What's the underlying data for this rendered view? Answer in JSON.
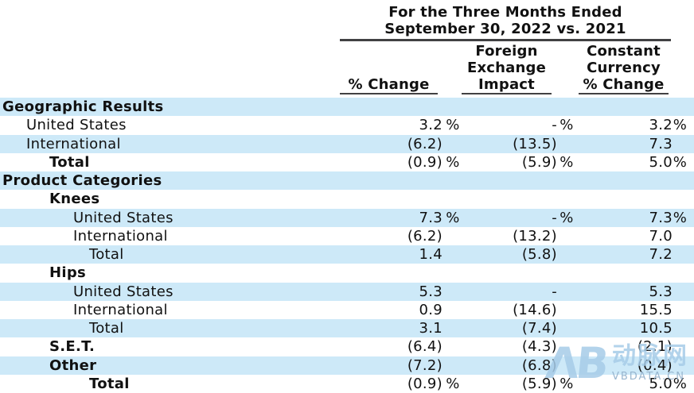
{
  "table_header": {
    "period_line1": "For the Three Months Ended",
    "period_line2": "September 30, 2022 vs. 2021",
    "col1_lines": [
      "% Change"
    ],
    "col2_lines": [
      "Foreign",
      "Exchange",
      "Impact"
    ],
    "col3_lines": [
      "Constant",
      "Currency",
      "% Change"
    ]
  },
  "rows": [
    {
      "label": "Geographic Results",
      "indent": 0,
      "bold": true,
      "shaded": true,
      "c1v": "",
      "c1s": "",
      "c2v": "",
      "c2s": "",
      "c3v": "",
      "c3s": ""
    },
    {
      "label": "United States",
      "indent": 1,
      "bold": false,
      "shaded": false,
      "c1v": "3.2",
      "c1s": "%",
      "c2v": "-",
      "c2s": "%",
      "c3v": "3.2",
      "c3s": "%"
    },
    {
      "label": "International",
      "indent": 1,
      "bold": false,
      "shaded": true,
      "c1v": "(6.2)",
      "c1s": "",
      "c2v": "(13.5)",
      "c2s": "",
      "c3v": "7.3",
      "c3s": ""
    },
    {
      "label": "Total",
      "indent": 2,
      "bold": true,
      "shaded": false,
      "c1v": "(0.9)",
      "c1s": "%",
      "c2v": "(5.9)",
      "c2s": "%",
      "c3v": "5.0",
      "c3s": "%"
    },
    {
      "label": "Product Categories",
      "indent": 0,
      "bold": true,
      "shaded": true,
      "c1v": "",
      "c1s": "",
      "c2v": "",
      "c2s": "",
      "c3v": "",
      "c3s": ""
    },
    {
      "label": "Knees",
      "indent": 2,
      "bold": true,
      "shaded": false,
      "c1v": "",
      "c1s": "",
      "c2v": "",
      "c2s": "",
      "c3v": "",
      "c3s": ""
    },
    {
      "label": "United States",
      "indent": 3,
      "bold": false,
      "shaded": true,
      "c1v": "7.3",
      "c1s": "%",
      "c2v": "-",
      "c2s": "%",
      "c3v": "7.3",
      "c3s": "%"
    },
    {
      "label": "International",
      "indent": 3,
      "bold": false,
      "shaded": false,
      "c1v": "(6.2)",
      "c1s": "",
      "c2v": "(13.2)",
      "c2s": "",
      "c3v": "7.0",
      "c3s": ""
    },
    {
      "label": "Total",
      "indent": 4,
      "bold": false,
      "shaded": true,
      "c1v": "1.4",
      "c1s": "",
      "c2v": "(5.8)",
      "c2s": "",
      "c3v": "7.2",
      "c3s": ""
    },
    {
      "label": "Hips",
      "indent": 2,
      "bold": true,
      "shaded": false,
      "c1v": "",
      "c1s": "",
      "c2v": "",
      "c2s": "",
      "c3v": "",
      "c3s": ""
    },
    {
      "label": "United States",
      "indent": 3,
      "bold": false,
      "shaded": true,
      "c1v": "5.3",
      "c1s": "",
      "c2v": "-",
      "c2s": "",
      "c3v": "5.3",
      "c3s": ""
    },
    {
      "label": "International",
      "indent": 3,
      "bold": false,
      "shaded": false,
      "c1v": "0.9",
      "c1s": "",
      "c2v": "(14.6)",
      "c2s": "",
      "c3v": "15.5",
      "c3s": ""
    },
    {
      "label": "Total",
      "indent": 4,
      "bold": false,
      "shaded": true,
      "c1v": "3.1",
      "c1s": "",
      "c2v": "(7.4)",
      "c2s": "",
      "c3v": "10.5",
      "c3s": ""
    },
    {
      "label": "S.E.T.",
      "indent": 2,
      "bold": true,
      "shaded": false,
      "c1v": "(6.4)",
      "c1s": "",
      "c2v": "(4.3)",
      "c2s": "",
      "c3v": "(2.1)",
      "c3s": ""
    },
    {
      "label": "Other",
      "indent": 2,
      "bold": true,
      "shaded": true,
      "c1v": "(7.2)",
      "c1s": "",
      "c2v": "(6.8)",
      "c2s": "",
      "c3v": "(0.4)",
      "c3s": ""
    },
    {
      "label": "Total",
      "indent": 4,
      "bold": true,
      "shaded": false,
      "c1v": "(0.9)",
      "c1s": "%",
      "c2v": "(5.9)",
      "c2s": "%",
      "c3v": "5.0",
      "c3s": "%"
    }
  ],
  "watermark": {
    "logo": "ΛB",
    "name": "动脉网",
    "domain": "VBDATA.CN"
  },
  "colors": {
    "row_highlight": "#cde9f8",
    "rule": "#414143",
    "text": "#111111"
  }
}
